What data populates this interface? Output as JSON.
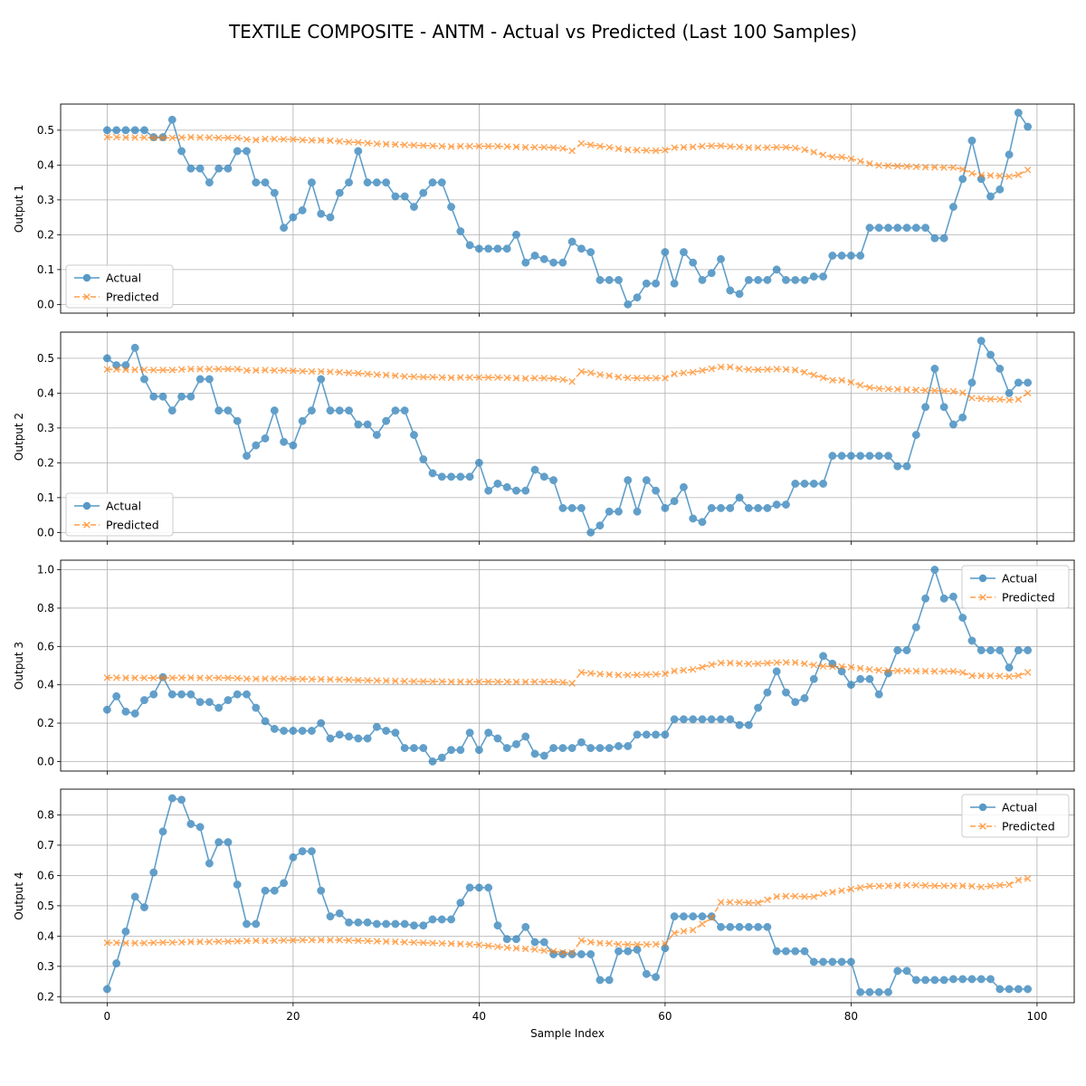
{
  "title": "TEXTILE COMPOSITE - ANTM - Actual vs Predicted (Last 100 Samples)",
  "colors": {
    "actual": "#1f77b4",
    "predicted": "#ff7f0e",
    "grid": "#b0b0b0"
  },
  "chart_data": [
    {
      "type": "line",
      "xlabel": "",
      "ylabel": "Output 1",
      "xlim": [
        -5,
        104
      ],
      "ylim": [
        -0.025,
        0.575
      ],
      "xticks": [
        0,
        20,
        40,
        60,
        80,
        100
      ],
      "yticks": [
        0.0,
        0.1,
        0.2,
        0.3,
        0.4,
        0.5
      ],
      "grid": true,
      "legend_position": "lower left",
      "series": [
        {
          "name": "Actual",
          "marker": "circle",
          "style": "solid",
          "values": [
            0.5,
            0.5,
            0.5,
            0.5,
            0.5,
            0.48,
            0.48,
            0.53,
            0.44,
            0.39,
            0.39,
            0.35,
            0.39,
            0.39,
            0.44,
            0.44,
            0.35,
            0.35,
            0.32,
            0.22,
            0.25,
            0.27,
            0.35,
            0.26,
            0.25,
            0.32,
            0.35,
            0.44,
            0.35,
            0.35,
            0.35,
            0.31,
            0.31,
            0.28,
            0.32,
            0.35,
            0.35,
            0.28,
            0.21,
            0.17,
            0.16,
            0.16,
            0.16,
            0.16,
            0.2,
            0.12,
            0.14,
            0.13,
            0.12,
            0.12,
            0.18,
            0.16,
            0.15,
            0.07,
            0.07,
            0.07,
            0.0,
            0.02,
            0.06,
            0.06,
            0.15,
            0.06,
            0.15,
            0.12,
            0.07,
            0.09,
            0.13,
            0.04,
            0.03,
            0.07,
            0.07,
            0.07,
            0.1,
            0.07,
            0.07,
            0.07,
            0.08,
            0.08,
            0.14,
            0.14,
            0.14,
            0.14,
            0.22,
            0.22,
            0.22,
            0.22,
            0.22,
            0.22,
            0.22,
            0.19,
            0.19,
            0.28,
            0.36,
            0.47,
            0.36,
            0.31,
            0.33,
            0.43,
            0.55,
            0.51
          ]
        },
        {
          "name": "Predicted",
          "marker": "x",
          "style": "dashed",
          "values": [
            0.48,
            0.48,
            0.479,
            0.479,
            0.479,
            0.478,
            0.478,
            0.478,
            0.479,
            0.48,
            0.479,
            0.479,
            0.478,
            0.478,
            0.478,
            0.474,
            0.472,
            0.475,
            0.475,
            0.474,
            0.474,
            0.472,
            0.471,
            0.471,
            0.47,
            0.468,
            0.466,
            0.465,
            0.463,
            0.461,
            0.46,
            0.459,
            0.458,
            0.457,
            0.456,
            0.455,
            0.454,
            0.453,
            0.454,
            0.454,
            0.454,
            0.454,
            0.454,
            0.453,
            0.452,
            0.451,
            0.451,
            0.451,
            0.45,
            0.448,
            0.441,
            0.462,
            0.458,
            0.454,
            0.451,
            0.447,
            0.444,
            0.443,
            0.442,
            0.441,
            0.443,
            0.45,
            0.451,
            0.452,
            0.454,
            0.455,
            0.455,
            0.453,
            0.452,
            0.45,
            0.45,
            0.45,
            0.451,
            0.451,
            0.449,
            0.444,
            0.437,
            0.429,
            0.423,
            0.423,
            0.418,
            0.411,
            0.404,
            0.399,
            0.398,
            0.397,
            0.396,
            0.395,
            0.394,
            0.394,
            0.393,
            0.393,
            0.388,
            0.376,
            0.371,
            0.37,
            0.369,
            0.367,
            0.372,
            0.386
          ]
        }
      ]
    },
    {
      "type": "line",
      "xlabel": "",
      "ylabel": "Output 2",
      "xlim": [
        -5,
        104
      ],
      "ylim": [
        -0.025,
        0.575
      ],
      "xticks": [
        0,
        20,
        40,
        60,
        80,
        100
      ],
      "yticks": [
        0.0,
        0.1,
        0.2,
        0.3,
        0.4,
        0.5
      ],
      "grid": true,
      "legend_position": "lower left",
      "series": [
        {
          "name": "Actual",
          "marker": "circle",
          "style": "solid",
          "values": [
            0.5,
            0.48,
            0.48,
            0.53,
            0.44,
            0.39,
            0.39,
            0.35,
            0.39,
            0.39,
            0.44,
            0.44,
            0.35,
            0.35,
            0.32,
            0.22,
            0.25,
            0.27,
            0.35,
            0.26,
            0.25,
            0.32,
            0.35,
            0.44,
            0.35,
            0.35,
            0.35,
            0.31,
            0.31,
            0.28,
            0.32,
            0.35,
            0.35,
            0.28,
            0.21,
            0.17,
            0.16,
            0.16,
            0.16,
            0.16,
            0.2,
            0.12,
            0.14,
            0.13,
            0.12,
            0.12,
            0.18,
            0.16,
            0.15,
            0.07,
            0.07,
            0.07,
            0.0,
            0.02,
            0.06,
            0.06,
            0.15,
            0.06,
            0.15,
            0.12,
            0.07,
            0.09,
            0.13,
            0.04,
            0.03,
            0.07,
            0.07,
            0.07,
            0.1,
            0.07,
            0.07,
            0.07,
            0.08,
            0.08,
            0.14,
            0.14,
            0.14,
            0.14,
            0.22,
            0.22,
            0.22,
            0.22,
            0.22,
            0.22,
            0.22,
            0.19,
            0.19,
            0.28,
            0.36,
            0.47,
            0.36,
            0.31,
            0.33,
            0.43,
            0.55,
            0.51,
            0.47,
            0.4,
            0.43,
            0.43
          ]
        },
        {
          "name": "Predicted",
          "marker": "x",
          "style": "dashed",
          "values": [
            0.468,
            0.468,
            0.467,
            0.467,
            0.467,
            0.466,
            0.466,
            0.466,
            0.468,
            0.469,
            0.469,
            0.469,
            0.469,
            0.469,
            0.469,
            0.465,
            0.465,
            0.466,
            0.465,
            0.465,
            0.464,
            0.463,
            0.462,
            0.462,
            0.461,
            0.46,
            0.458,
            0.457,
            0.455,
            0.453,
            0.452,
            0.45,
            0.448,
            0.447,
            0.446,
            0.446,
            0.445,
            0.444,
            0.445,
            0.445,
            0.445,
            0.445,
            0.445,
            0.444,
            0.443,
            0.442,
            0.443,
            0.443,
            0.442,
            0.439,
            0.433,
            0.462,
            0.458,
            0.453,
            0.45,
            0.446,
            0.444,
            0.443,
            0.443,
            0.443,
            0.443,
            0.455,
            0.458,
            0.46,
            0.465,
            0.47,
            0.475,
            0.475,
            0.47,
            0.468,
            0.467,
            0.468,
            0.469,
            0.468,
            0.466,
            0.46,
            0.452,
            0.444,
            0.437,
            0.437,
            0.431,
            0.423,
            0.416,
            0.413,
            0.412,
            0.411,
            0.41,
            0.409,
            0.408,
            0.407,
            0.406,
            0.405,
            0.401,
            0.386,
            0.384,
            0.383,
            0.382,
            0.38,
            0.382,
            0.4
          ]
        }
      ]
    },
    {
      "type": "line",
      "xlabel": "",
      "ylabel": "Output 3",
      "xlim": [
        -5,
        104
      ],
      "ylim": [
        -0.05,
        1.05
      ],
      "xticks": [
        0,
        20,
        40,
        60,
        80,
        100
      ],
      "yticks": [
        0.0,
        0.2,
        0.4,
        0.6,
        0.8,
        1.0
      ],
      "grid": true,
      "legend_position": "upper right",
      "series": [
        {
          "name": "Actual",
          "marker": "circle",
          "style": "solid",
          "values": [
            0.27,
            0.34,
            0.26,
            0.25,
            0.32,
            0.35,
            0.44,
            0.35,
            0.35,
            0.35,
            0.31,
            0.31,
            0.28,
            0.32,
            0.35,
            0.35,
            0.28,
            0.21,
            0.17,
            0.16,
            0.16,
            0.16,
            0.16,
            0.2,
            0.12,
            0.14,
            0.13,
            0.12,
            0.12,
            0.18,
            0.16,
            0.15,
            0.07,
            0.07,
            0.07,
            0.0,
            0.02,
            0.06,
            0.06,
            0.15,
            0.06,
            0.15,
            0.12,
            0.07,
            0.09,
            0.13,
            0.04,
            0.03,
            0.07,
            0.07,
            0.07,
            0.1,
            0.07,
            0.07,
            0.07,
            0.08,
            0.08,
            0.14,
            0.14,
            0.14,
            0.14,
            0.22,
            0.22,
            0.22,
            0.22,
            0.22,
            0.22,
            0.22,
            0.19,
            0.19,
            0.28,
            0.36,
            0.47,
            0.36,
            0.31,
            0.33,
            0.43,
            0.55,
            0.51,
            0.47,
            0.4,
            0.43,
            0.43,
            0.35,
            0.46,
            0.58,
            0.58,
            0.7,
            0.85,
            1.0,
            0.85,
            0.86,
            0.75,
            0.63,
            0.58,
            0.58,
            0.58,
            0.49,
            0.58,
            0.58
          ]
        },
        {
          "name": "Predicted",
          "marker": "x",
          "style": "dashed",
          "values": [
            0.437,
            0.437,
            0.436,
            0.436,
            0.436,
            0.436,
            0.436,
            0.436,
            0.437,
            0.437,
            0.436,
            0.436,
            0.436,
            0.436,
            0.435,
            0.432,
            0.431,
            0.432,
            0.432,
            0.432,
            0.431,
            0.43,
            0.429,
            0.429,
            0.428,
            0.427,
            0.426,
            0.424,
            0.423,
            0.422,
            0.421,
            0.42,
            0.419,
            0.418,
            0.418,
            0.417,
            0.417,
            0.416,
            0.416,
            0.416,
            0.416,
            0.416,
            0.416,
            0.416,
            0.415,
            0.415,
            0.416,
            0.416,
            0.416,
            0.413,
            0.407,
            0.465,
            0.46,
            0.456,
            0.454,
            0.451,
            0.451,
            0.452,
            0.453,
            0.455,
            0.458,
            0.472,
            0.476,
            0.48,
            0.492,
            0.505,
            0.514,
            0.514,
            0.511,
            0.509,
            0.51,
            0.513,
            0.516,
            0.517,
            0.516,
            0.51,
            0.503,
            0.497,
            0.495,
            0.495,
            0.492,
            0.486,
            0.48,
            0.476,
            0.474,
            0.473,
            0.472,
            0.471,
            0.471,
            0.47,
            0.47,
            0.47,
            0.464,
            0.447,
            0.447,
            0.447,
            0.446,
            0.443,
            0.448,
            0.465
          ]
        }
      ]
    },
    {
      "type": "line",
      "xlabel": "Sample Index",
      "ylabel": "Output 4",
      "xlim": [
        -5,
        104
      ],
      "ylim": [
        0.18,
        0.885
      ],
      "xticks": [
        0,
        20,
        40,
        60,
        80,
        100
      ],
      "yticks": [
        0.2,
        0.3,
        0.4,
        0.5,
        0.6,
        0.7,
        0.8
      ],
      "grid": true,
      "legend_position": "upper right",
      "series": [
        {
          "name": "Actual",
          "marker": "circle",
          "style": "solid",
          "values": [
            0.225,
            0.31,
            0.415,
            0.53,
            0.495,
            0.61,
            0.745,
            0.855,
            0.85,
            0.77,
            0.76,
            0.64,
            0.71,
            0.71,
            0.57,
            0.44,
            0.44,
            0.55,
            0.55,
            0.575,
            0.66,
            0.68,
            0.68,
            0.55,
            0.465,
            0.475,
            0.445,
            0.445,
            0.445,
            0.44,
            0.44,
            0.44,
            0.44,
            0.435,
            0.435,
            0.455,
            0.455,
            0.455,
            0.51,
            0.56,
            0.56,
            0.56,
            0.435,
            0.39,
            0.39,
            0.43,
            0.38,
            0.38,
            0.34,
            0.34,
            0.34,
            0.34,
            0.34,
            0.255,
            0.255,
            0.35,
            0.35,
            0.355,
            0.275,
            0.265,
            0.36,
            0.465,
            0.465,
            0.465,
            0.465,
            0.465,
            0.43,
            0.43,
            0.43,
            0.43,
            0.43,
            0.43,
            0.35,
            0.35,
            0.35,
            0.35,
            0.315,
            0.315,
            0.315,
            0.315,
            0.315,
            0.215,
            0.215,
            0.215,
            0.215,
            0.285,
            0.285,
            0.255,
            0.255,
            0.255,
            0.255,
            0.258,
            0.258,
            0.258,
            0.258,
            0.258,
            0.225,
            0.225,
            0.225,
            0.225
          ]
        },
        {
          "name": "Predicted",
          "marker": "x",
          "style": "dashed",
          "values": [
            0.378,
            0.378,
            0.377,
            0.377,
            0.377,
            0.378,
            0.379,
            0.379,
            0.38,
            0.381,
            0.381,
            0.381,
            0.382,
            0.382,
            0.383,
            0.384,
            0.385,
            0.384,
            0.385,
            0.386,
            0.386,
            0.387,
            0.387,
            0.387,
            0.387,
            0.387,
            0.386,
            0.385,
            0.384,
            0.383,
            0.382,
            0.381,
            0.38,
            0.379,
            0.378,
            0.377,
            0.376,
            0.375,
            0.374,
            0.373,
            0.371,
            0.368,
            0.365,
            0.362,
            0.36,
            0.358,
            0.356,
            0.352,
            0.35,
            0.346,
            0.346,
            0.386,
            0.38,
            0.377,
            0.376,
            0.373,
            0.372,
            0.372,
            0.372,
            0.373,
            0.375,
            0.41,
            0.416,
            0.42,
            0.44,
            0.46,
            0.512,
            0.512,
            0.512,
            0.51,
            0.51,
            0.52,
            0.53,
            0.532,
            0.532,
            0.53,
            0.53,
            0.54,
            0.545,
            0.55,
            0.555,
            0.56,
            0.565,
            0.565,
            0.566,
            0.567,
            0.568,
            0.568,
            0.567,
            0.566,
            0.566,
            0.566,
            0.566,
            0.565,
            0.562,
            0.565,
            0.568,
            0.57,
            0.585,
            0.59
          ]
        }
      ]
    }
  ]
}
